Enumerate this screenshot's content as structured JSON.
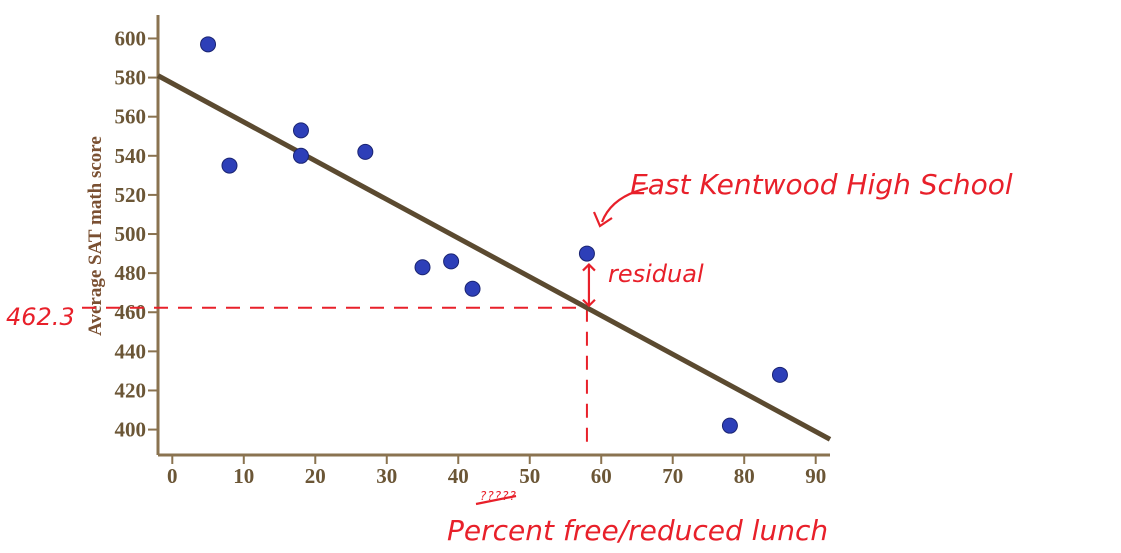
{
  "chart_data": {
    "type": "scatter",
    "title": "",
    "xlabel": "",
    "ylabel": "Average SAT math score",
    "xlim": [
      -2,
      92
    ],
    "ylim": [
      387,
      612
    ],
    "x_ticks": [
      0,
      10,
      20,
      30,
      40,
      50,
      60,
      70,
      80,
      90
    ],
    "y_ticks": [
      400,
      420,
      440,
      460,
      480,
      500,
      520,
      540,
      560,
      580,
      600
    ],
    "grid": false,
    "series": [
      {
        "points": [
          {
            "x": 5,
            "y": 597
          },
          {
            "x": 8,
            "y": 535
          },
          {
            "x": 18,
            "y": 553
          },
          {
            "x": 18,
            "y": 540
          },
          {
            "x": 27,
            "y": 542
          },
          {
            "x": 35,
            "y": 483
          },
          {
            "x": 39,
            "y": 486
          },
          {
            "x": 42,
            "y": 472
          },
          {
            "x": 58,
            "y": 490
          },
          {
            "x": 78,
            "y": 402
          },
          {
            "x": 85,
            "y": 428
          }
        ]
      }
    ],
    "regression_line": {
      "x_start": -2,
      "y_start": 581,
      "x_end": 92,
      "y_end": 395
    },
    "annotations": {
      "highlight_label": "East Kentwood High School",
      "residual_label": "residual",
      "predicted_value_label": "462.3",
      "predicted_value": 462.3,
      "highlight_x": 58,
      "xlabel_handwritten": "Percent free/reduced lunch",
      "crossed_out_label": "?????"
    }
  },
  "colors": {
    "axis": "#8a7350",
    "tick_text": "#6b5636",
    "ylabel": "#7a5032",
    "regression_line": "#5b4a30",
    "point": "#2d3fb8",
    "annotation_red": "#e8202a"
  }
}
